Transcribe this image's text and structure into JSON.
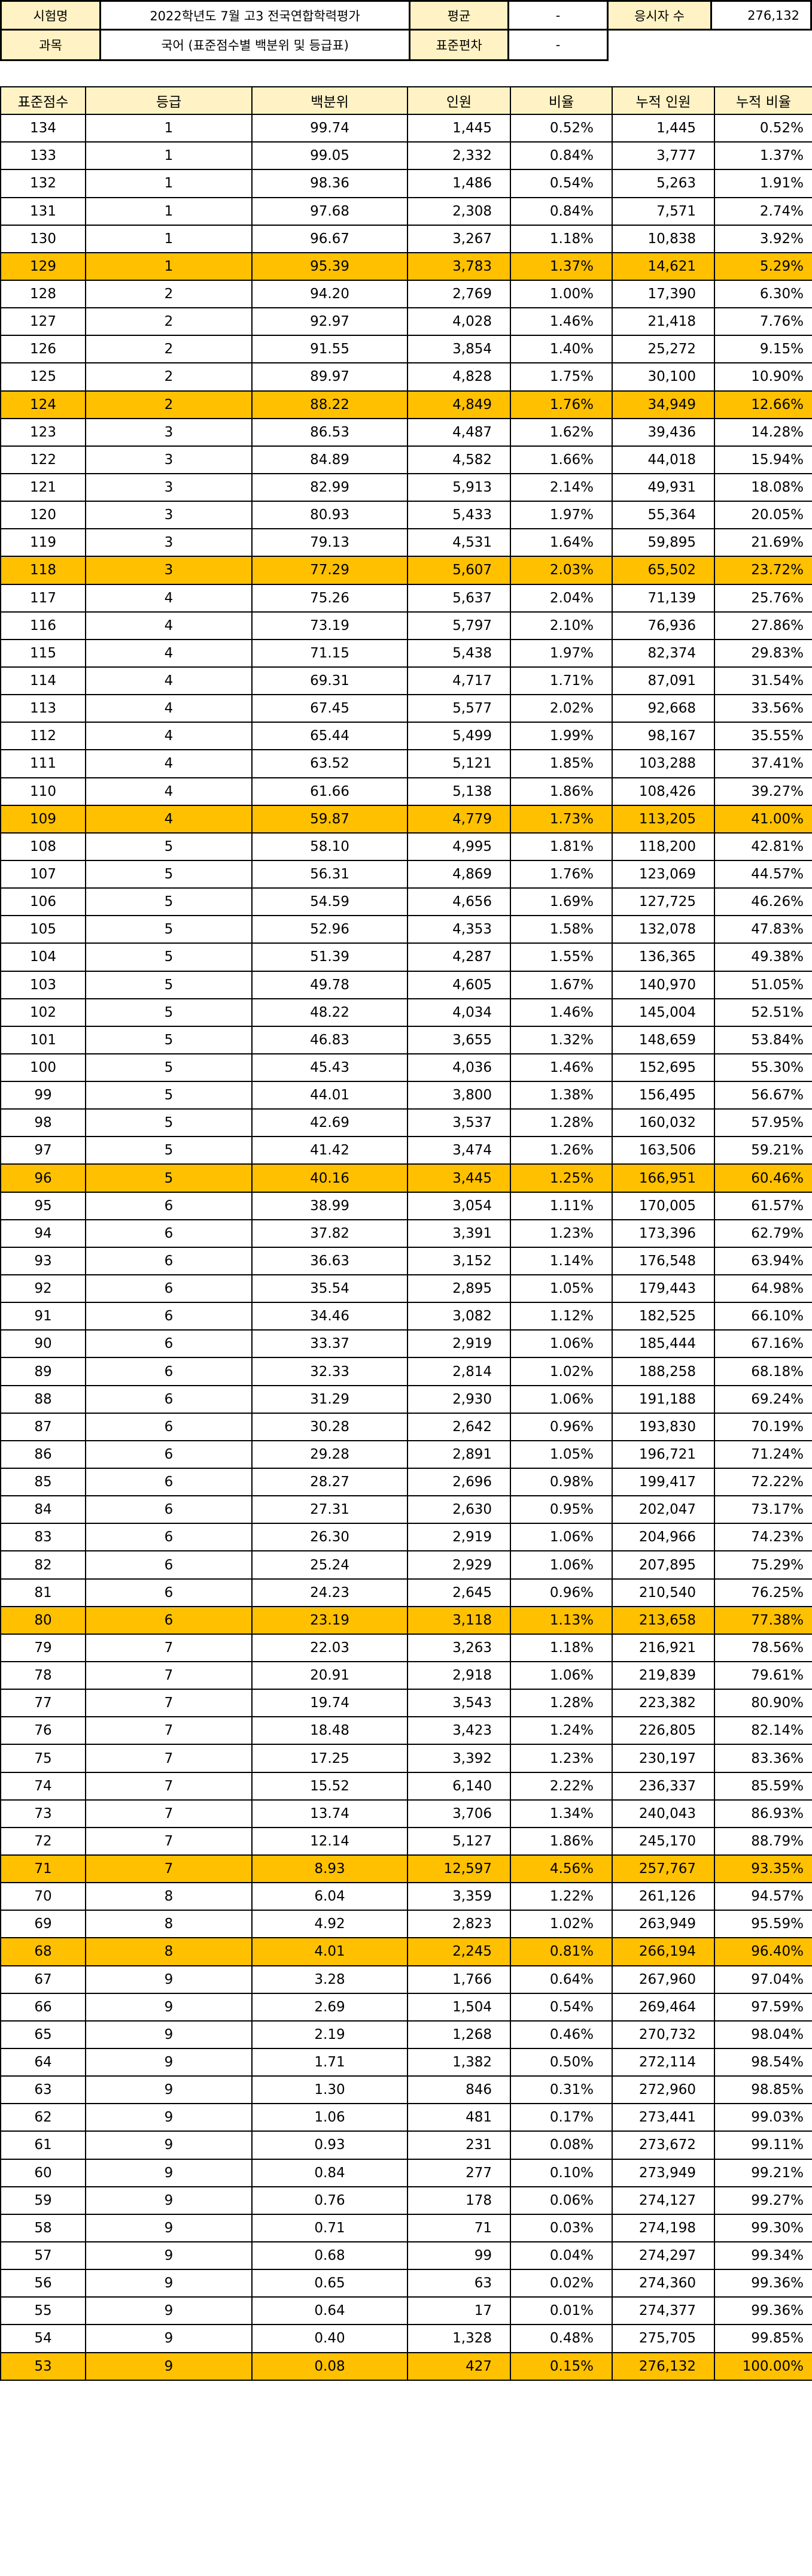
{
  "info": {
    "exam_label": "시험명",
    "exam_value": "2022학년도 7월 고3 전국연합학력평가",
    "avg_label": "평균",
    "avg_value": "-",
    "examinees_label": "응시자 수",
    "examinees_value": "276,132",
    "subject_label": "과목",
    "subject_value": "국어 (표준점수별 백분위 및 등급표)",
    "sd_label": "표준편차",
    "sd_value": "-"
  },
  "table": {
    "columns": [
      "표준점수",
      "등급",
      "백분위",
      "인원",
      "비율",
      "누적 인원",
      "누적 비율"
    ],
    "rows": [
      {
        "score": "134",
        "grade": "1",
        "pct": "99.74",
        "count": "1,445",
        "ratio": "0.52%",
        "cum_count": "1,445",
        "cum_ratio": "0.52%",
        "hl": false
      },
      {
        "score": "133",
        "grade": "1",
        "pct": "99.05",
        "count": "2,332",
        "ratio": "0.84%",
        "cum_count": "3,777",
        "cum_ratio": "1.37%",
        "hl": false
      },
      {
        "score": "132",
        "grade": "1",
        "pct": "98.36",
        "count": "1,486",
        "ratio": "0.54%",
        "cum_count": "5,263",
        "cum_ratio": "1.91%",
        "hl": false
      },
      {
        "score": "131",
        "grade": "1",
        "pct": "97.68",
        "count": "2,308",
        "ratio": "0.84%",
        "cum_count": "7,571",
        "cum_ratio": "2.74%",
        "hl": false
      },
      {
        "score": "130",
        "grade": "1",
        "pct": "96.67",
        "count": "3,267",
        "ratio": "1.18%",
        "cum_count": "10,838",
        "cum_ratio": "3.92%",
        "hl": false
      },
      {
        "score": "129",
        "grade": "1",
        "pct": "95.39",
        "count": "3,783",
        "ratio": "1.37%",
        "cum_count": "14,621",
        "cum_ratio": "5.29%",
        "hl": true
      },
      {
        "score": "128",
        "grade": "2",
        "pct": "94.20",
        "count": "2,769",
        "ratio": "1.00%",
        "cum_count": "17,390",
        "cum_ratio": "6.30%",
        "hl": false
      },
      {
        "score": "127",
        "grade": "2",
        "pct": "92.97",
        "count": "4,028",
        "ratio": "1.46%",
        "cum_count": "21,418",
        "cum_ratio": "7.76%",
        "hl": false
      },
      {
        "score": "126",
        "grade": "2",
        "pct": "91.55",
        "count": "3,854",
        "ratio": "1.40%",
        "cum_count": "25,272",
        "cum_ratio": "9.15%",
        "hl": false
      },
      {
        "score": "125",
        "grade": "2",
        "pct": "89.97",
        "count": "4,828",
        "ratio": "1.75%",
        "cum_count": "30,100",
        "cum_ratio": "10.90%",
        "hl": false
      },
      {
        "score": "124",
        "grade": "2",
        "pct": "88.22",
        "count": "4,849",
        "ratio": "1.76%",
        "cum_count": "34,949",
        "cum_ratio": "12.66%",
        "hl": true
      },
      {
        "score": "123",
        "grade": "3",
        "pct": "86.53",
        "count": "4,487",
        "ratio": "1.62%",
        "cum_count": "39,436",
        "cum_ratio": "14.28%",
        "hl": false
      },
      {
        "score": "122",
        "grade": "3",
        "pct": "84.89",
        "count": "4,582",
        "ratio": "1.66%",
        "cum_count": "44,018",
        "cum_ratio": "15.94%",
        "hl": false
      },
      {
        "score": "121",
        "grade": "3",
        "pct": "82.99",
        "count": "5,913",
        "ratio": "2.14%",
        "cum_count": "49,931",
        "cum_ratio": "18.08%",
        "hl": false
      },
      {
        "score": "120",
        "grade": "3",
        "pct": "80.93",
        "count": "5,433",
        "ratio": "1.97%",
        "cum_count": "55,364",
        "cum_ratio": "20.05%",
        "hl": false
      },
      {
        "score": "119",
        "grade": "3",
        "pct": "79.13",
        "count": "4,531",
        "ratio": "1.64%",
        "cum_count": "59,895",
        "cum_ratio": "21.69%",
        "hl": false
      },
      {
        "score": "118",
        "grade": "3",
        "pct": "77.29",
        "count": "5,607",
        "ratio": "2.03%",
        "cum_count": "65,502",
        "cum_ratio": "23.72%",
        "hl": true
      },
      {
        "score": "117",
        "grade": "4",
        "pct": "75.26",
        "count": "5,637",
        "ratio": "2.04%",
        "cum_count": "71,139",
        "cum_ratio": "25.76%",
        "hl": false
      },
      {
        "score": "116",
        "grade": "4",
        "pct": "73.19",
        "count": "5,797",
        "ratio": "2.10%",
        "cum_count": "76,936",
        "cum_ratio": "27.86%",
        "hl": false
      },
      {
        "score": "115",
        "grade": "4",
        "pct": "71.15",
        "count": "5,438",
        "ratio": "1.97%",
        "cum_count": "82,374",
        "cum_ratio": "29.83%",
        "hl": false
      },
      {
        "score": "114",
        "grade": "4",
        "pct": "69.31",
        "count": "4,717",
        "ratio": "1.71%",
        "cum_count": "87,091",
        "cum_ratio": "31.54%",
        "hl": false
      },
      {
        "score": "113",
        "grade": "4",
        "pct": "67.45",
        "count": "5,577",
        "ratio": "2.02%",
        "cum_count": "92,668",
        "cum_ratio": "33.56%",
        "hl": false
      },
      {
        "score": "112",
        "grade": "4",
        "pct": "65.44",
        "count": "5,499",
        "ratio": "1.99%",
        "cum_count": "98,167",
        "cum_ratio": "35.55%",
        "hl": false
      },
      {
        "score": "111",
        "grade": "4",
        "pct": "63.52",
        "count": "5,121",
        "ratio": "1.85%",
        "cum_count": "103,288",
        "cum_ratio": "37.41%",
        "hl": false
      },
      {
        "score": "110",
        "grade": "4",
        "pct": "61.66",
        "count": "5,138",
        "ratio": "1.86%",
        "cum_count": "108,426",
        "cum_ratio": "39.27%",
        "hl": false
      },
      {
        "score": "109",
        "grade": "4",
        "pct": "59.87",
        "count": "4,779",
        "ratio": "1.73%",
        "cum_count": "113,205",
        "cum_ratio": "41.00%",
        "hl": true
      },
      {
        "score": "108",
        "grade": "5",
        "pct": "58.10",
        "count": "4,995",
        "ratio": "1.81%",
        "cum_count": "118,200",
        "cum_ratio": "42.81%",
        "hl": false
      },
      {
        "score": "107",
        "grade": "5",
        "pct": "56.31",
        "count": "4,869",
        "ratio": "1.76%",
        "cum_count": "123,069",
        "cum_ratio": "44.57%",
        "hl": false
      },
      {
        "score": "106",
        "grade": "5",
        "pct": "54.59",
        "count": "4,656",
        "ratio": "1.69%",
        "cum_count": "127,725",
        "cum_ratio": "46.26%",
        "hl": false
      },
      {
        "score": "105",
        "grade": "5",
        "pct": "52.96",
        "count": "4,353",
        "ratio": "1.58%",
        "cum_count": "132,078",
        "cum_ratio": "47.83%",
        "hl": false
      },
      {
        "score": "104",
        "grade": "5",
        "pct": "51.39",
        "count": "4,287",
        "ratio": "1.55%",
        "cum_count": "136,365",
        "cum_ratio": "49.38%",
        "hl": false
      },
      {
        "score": "103",
        "grade": "5",
        "pct": "49.78",
        "count": "4,605",
        "ratio": "1.67%",
        "cum_count": "140,970",
        "cum_ratio": "51.05%",
        "hl": false
      },
      {
        "score": "102",
        "grade": "5",
        "pct": "48.22",
        "count": "4,034",
        "ratio": "1.46%",
        "cum_count": "145,004",
        "cum_ratio": "52.51%",
        "hl": false
      },
      {
        "score": "101",
        "grade": "5",
        "pct": "46.83",
        "count": "3,655",
        "ratio": "1.32%",
        "cum_count": "148,659",
        "cum_ratio": "53.84%",
        "hl": false
      },
      {
        "score": "100",
        "grade": "5",
        "pct": "45.43",
        "count": "4,036",
        "ratio": "1.46%",
        "cum_count": "152,695",
        "cum_ratio": "55.30%",
        "hl": false
      },
      {
        "score": "99",
        "grade": "5",
        "pct": "44.01",
        "count": "3,800",
        "ratio": "1.38%",
        "cum_count": "156,495",
        "cum_ratio": "56.67%",
        "hl": false
      },
      {
        "score": "98",
        "grade": "5",
        "pct": "42.69",
        "count": "3,537",
        "ratio": "1.28%",
        "cum_count": "160,032",
        "cum_ratio": "57.95%",
        "hl": false
      },
      {
        "score": "97",
        "grade": "5",
        "pct": "41.42",
        "count": "3,474",
        "ratio": "1.26%",
        "cum_count": "163,506",
        "cum_ratio": "59.21%",
        "hl": false
      },
      {
        "score": "96",
        "grade": "5",
        "pct": "40.16",
        "count": "3,445",
        "ratio": "1.25%",
        "cum_count": "166,951",
        "cum_ratio": "60.46%",
        "hl": true
      },
      {
        "score": "95",
        "grade": "6",
        "pct": "38.99",
        "count": "3,054",
        "ratio": "1.11%",
        "cum_count": "170,005",
        "cum_ratio": "61.57%",
        "hl": false
      },
      {
        "score": "94",
        "grade": "6",
        "pct": "37.82",
        "count": "3,391",
        "ratio": "1.23%",
        "cum_count": "173,396",
        "cum_ratio": "62.79%",
        "hl": false
      },
      {
        "score": "93",
        "grade": "6",
        "pct": "36.63",
        "count": "3,152",
        "ratio": "1.14%",
        "cum_count": "176,548",
        "cum_ratio": "63.94%",
        "hl": false
      },
      {
        "score": "92",
        "grade": "6",
        "pct": "35.54",
        "count": "2,895",
        "ratio": "1.05%",
        "cum_count": "179,443",
        "cum_ratio": "64.98%",
        "hl": false
      },
      {
        "score": "91",
        "grade": "6",
        "pct": "34.46",
        "count": "3,082",
        "ratio": "1.12%",
        "cum_count": "182,525",
        "cum_ratio": "66.10%",
        "hl": false
      },
      {
        "score": "90",
        "grade": "6",
        "pct": "33.37",
        "count": "2,919",
        "ratio": "1.06%",
        "cum_count": "185,444",
        "cum_ratio": "67.16%",
        "hl": false
      },
      {
        "score": "89",
        "grade": "6",
        "pct": "32.33",
        "count": "2,814",
        "ratio": "1.02%",
        "cum_count": "188,258",
        "cum_ratio": "68.18%",
        "hl": false
      },
      {
        "score": "88",
        "grade": "6",
        "pct": "31.29",
        "count": "2,930",
        "ratio": "1.06%",
        "cum_count": "191,188",
        "cum_ratio": "69.24%",
        "hl": false
      },
      {
        "score": "87",
        "grade": "6",
        "pct": "30.28",
        "count": "2,642",
        "ratio": "0.96%",
        "cum_count": "193,830",
        "cum_ratio": "70.19%",
        "hl": false
      },
      {
        "score": "86",
        "grade": "6",
        "pct": "29.28",
        "count": "2,891",
        "ratio": "1.05%",
        "cum_count": "196,721",
        "cum_ratio": "71.24%",
        "hl": false
      },
      {
        "score": "85",
        "grade": "6",
        "pct": "28.27",
        "count": "2,696",
        "ratio": "0.98%",
        "cum_count": "199,417",
        "cum_ratio": "72.22%",
        "hl": false
      },
      {
        "score": "84",
        "grade": "6",
        "pct": "27.31",
        "count": "2,630",
        "ratio": "0.95%",
        "cum_count": "202,047",
        "cum_ratio": "73.17%",
        "hl": false
      },
      {
        "score": "83",
        "grade": "6",
        "pct": "26.30",
        "count": "2,919",
        "ratio": "1.06%",
        "cum_count": "204,966",
        "cum_ratio": "74.23%",
        "hl": false
      },
      {
        "score": "82",
        "grade": "6",
        "pct": "25.24",
        "count": "2,929",
        "ratio": "1.06%",
        "cum_count": "207,895",
        "cum_ratio": "75.29%",
        "hl": false
      },
      {
        "score": "81",
        "grade": "6",
        "pct": "24.23",
        "count": "2,645",
        "ratio": "0.96%",
        "cum_count": "210,540",
        "cum_ratio": "76.25%",
        "hl": false
      },
      {
        "score": "80",
        "grade": "6",
        "pct": "23.19",
        "count": "3,118",
        "ratio": "1.13%",
        "cum_count": "213,658",
        "cum_ratio": "77.38%",
        "hl": true
      },
      {
        "score": "79",
        "grade": "7",
        "pct": "22.03",
        "count": "3,263",
        "ratio": "1.18%",
        "cum_count": "216,921",
        "cum_ratio": "78.56%",
        "hl": false
      },
      {
        "score": "78",
        "grade": "7",
        "pct": "20.91",
        "count": "2,918",
        "ratio": "1.06%",
        "cum_count": "219,839",
        "cum_ratio": "79.61%",
        "hl": false
      },
      {
        "score": "77",
        "grade": "7",
        "pct": "19.74",
        "count": "3,543",
        "ratio": "1.28%",
        "cum_count": "223,382",
        "cum_ratio": "80.90%",
        "hl": false
      },
      {
        "score": "76",
        "grade": "7",
        "pct": "18.48",
        "count": "3,423",
        "ratio": "1.24%",
        "cum_count": "226,805",
        "cum_ratio": "82.14%",
        "hl": false
      },
      {
        "score": "75",
        "grade": "7",
        "pct": "17.25",
        "count": "3,392",
        "ratio": "1.23%",
        "cum_count": "230,197",
        "cum_ratio": "83.36%",
        "hl": false
      },
      {
        "score": "74",
        "grade": "7",
        "pct": "15.52",
        "count": "6,140",
        "ratio": "2.22%",
        "cum_count": "236,337",
        "cum_ratio": "85.59%",
        "hl": false
      },
      {
        "score": "73",
        "grade": "7",
        "pct": "13.74",
        "count": "3,706",
        "ratio": "1.34%",
        "cum_count": "240,043",
        "cum_ratio": "86.93%",
        "hl": false
      },
      {
        "score": "72",
        "grade": "7",
        "pct": "12.14",
        "count": "5,127",
        "ratio": "1.86%",
        "cum_count": "245,170",
        "cum_ratio": "88.79%",
        "hl": false
      },
      {
        "score": "71",
        "grade": "7",
        "pct": "8.93",
        "count": "12,597",
        "ratio": "4.56%",
        "cum_count": "257,767",
        "cum_ratio": "93.35%",
        "hl": true
      },
      {
        "score": "70",
        "grade": "8",
        "pct": "6.04",
        "count": "3,359",
        "ratio": "1.22%",
        "cum_count": "261,126",
        "cum_ratio": "94.57%",
        "hl": false
      },
      {
        "score": "69",
        "grade": "8",
        "pct": "4.92",
        "count": "2,823",
        "ratio": "1.02%",
        "cum_count": "263,949",
        "cum_ratio": "95.59%",
        "hl": false
      },
      {
        "score": "68",
        "grade": "8",
        "pct": "4.01",
        "count": "2,245",
        "ratio": "0.81%",
        "cum_count": "266,194",
        "cum_ratio": "96.40%",
        "hl": true
      },
      {
        "score": "67",
        "grade": "9",
        "pct": "3.28",
        "count": "1,766",
        "ratio": "0.64%",
        "cum_count": "267,960",
        "cum_ratio": "97.04%",
        "hl": false
      },
      {
        "score": "66",
        "grade": "9",
        "pct": "2.69",
        "count": "1,504",
        "ratio": "0.54%",
        "cum_count": "269,464",
        "cum_ratio": "97.59%",
        "hl": false
      },
      {
        "score": "65",
        "grade": "9",
        "pct": "2.19",
        "count": "1,268",
        "ratio": "0.46%",
        "cum_count": "270,732",
        "cum_ratio": "98.04%",
        "hl": false
      },
      {
        "score": "64",
        "grade": "9",
        "pct": "1.71",
        "count": "1,382",
        "ratio": "0.50%",
        "cum_count": "272,114",
        "cum_ratio": "98.54%",
        "hl": false
      },
      {
        "score": "63",
        "grade": "9",
        "pct": "1.30",
        "count": "846",
        "ratio": "0.31%",
        "cum_count": "272,960",
        "cum_ratio": "98.85%",
        "hl": false
      },
      {
        "score": "62",
        "grade": "9",
        "pct": "1.06",
        "count": "481",
        "ratio": "0.17%",
        "cum_count": "273,441",
        "cum_ratio": "99.03%",
        "hl": false
      },
      {
        "score": "61",
        "grade": "9",
        "pct": "0.93",
        "count": "231",
        "ratio": "0.08%",
        "cum_count": "273,672",
        "cum_ratio": "99.11%",
        "hl": false
      },
      {
        "score": "60",
        "grade": "9",
        "pct": "0.84",
        "count": "277",
        "ratio": "0.10%",
        "cum_count": "273,949",
        "cum_ratio": "99.21%",
        "hl": false
      },
      {
        "score": "59",
        "grade": "9",
        "pct": "0.76",
        "count": "178",
        "ratio": "0.06%",
        "cum_count": "274,127",
        "cum_ratio": "99.27%",
        "hl": false
      },
      {
        "score": "58",
        "grade": "9",
        "pct": "0.71",
        "count": "71",
        "ratio": "0.03%",
        "cum_count": "274,198",
        "cum_ratio": "99.30%",
        "hl": false
      },
      {
        "score": "57",
        "grade": "9",
        "pct": "0.68",
        "count": "99",
        "ratio": "0.04%",
        "cum_count": "274,297",
        "cum_ratio": "99.34%",
        "hl": false
      },
      {
        "score": "56",
        "grade": "9",
        "pct": "0.65",
        "count": "63",
        "ratio": "0.02%",
        "cum_count": "274,360",
        "cum_ratio": "99.36%",
        "hl": false
      },
      {
        "score": "55",
        "grade": "9",
        "pct": "0.64",
        "count": "17",
        "ratio": "0.01%",
        "cum_count": "274,377",
        "cum_ratio": "99.36%",
        "hl": false
      },
      {
        "score": "54",
        "grade": "9",
        "pct": "0.40",
        "count": "1,328",
        "ratio": "0.48%",
        "cum_count": "275,705",
        "cum_ratio": "99.85%",
        "hl": false
      },
      {
        "score": "53",
        "grade": "9",
        "pct": "0.08",
        "count": "427",
        "ratio": "0.15%",
        "cum_count": "276,132",
        "cum_ratio": "100.00%",
        "hl": true
      }
    ]
  },
  "colors": {
    "header_fill": "#fff2c4",
    "highlight_row": "#ffc000",
    "grid": "#000000"
  }
}
